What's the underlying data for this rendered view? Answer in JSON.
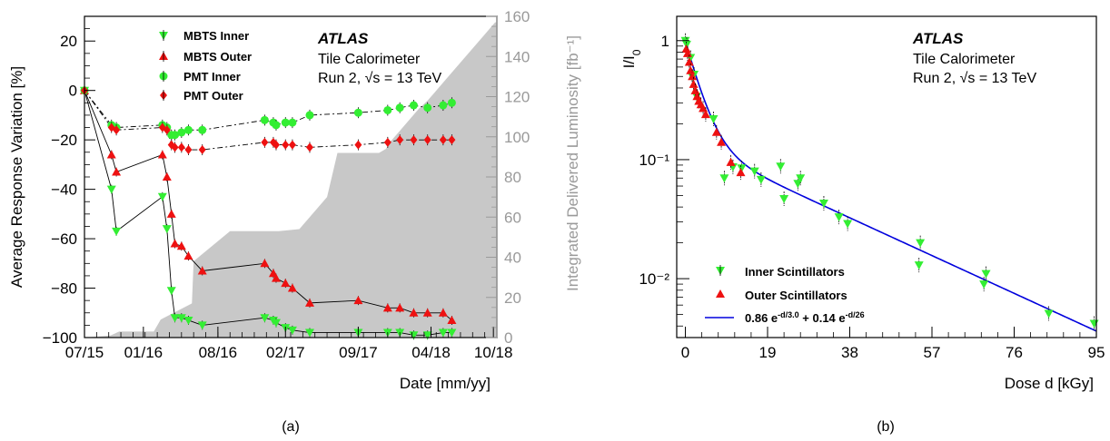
{
  "chart_data": [
    {
      "type": "line",
      "panel_caption": "(a)",
      "experiment": "ATLAS",
      "detector": "Tile Calorimeter",
      "run_label": "Run 2, √s = 13 TeV",
      "xlabel": "Date [mm/yy]",
      "ylabel": "Average Response Variation [%]",
      "ylabel_right": "Integrated Delivered Luminosity [fb⁻¹]",
      "ylim": [
        -100,
        30
      ],
      "ylim_right": [
        0,
        160
      ],
      "x_tick_labels": [
        "07/15",
        "01/16",
        "08/16",
        "02/17",
        "09/17",
        "04/18",
        "10/18"
      ],
      "y_tick_labels": [
        "20",
        "0",
        "−20",
        "−40",
        "−60",
        "−80",
        "−100"
      ],
      "y_right_tick_labels": [
        "0",
        "20",
        "40",
        "60",
        "80",
        "100",
        "120",
        "140",
        "160"
      ],
      "legend": [
        "MBTS Inner",
        "MBTS Outer",
        "PMT Inner",
        "PMT Outer"
      ],
      "legend_position": "top-left",
      "colors": {
        "green": "#33ee33",
        "red": "#ee1111",
        "luminosity": "#c8c8c8"
      },
      "x_unit": "days since 2015-07-15",
      "luminosity": {
        "x": [
          0,
          75,
          100,
          200,
          220,
          310,
          315,
          420,
          430,
          520,
          560,
          620,
          700,
          730,
          800,
          840,
          850,
          870,
          885,
          905,
          925,
          945,
          965,
          990,
          1010,
          1040,
          1070,
          1100,
          1130,
          1160,
          1185
        ],
        "y": [
          0,
          1,
          3,
          3,
          9,
          17,
          38,
          53,
          53,
          53,
          53,
          54,
          70,
          92,
          92,
          92,
          92,
          94,
          98,
          102,
          106,
          110,
          114,
          118,
          122,
          128,
          134,
          140,
          146,
          152,
          157
        ]
      },
      "series": [
        {
          "name": "MBTS Inner",
          "marker": "triangle-down",
          "color": "#33ee33",
          "x": [
            0,
            78,
            92,
            225,
            238,
            251,
            261,
            280,
            300,
            340,
            520,
            545,
            553,
            580,
            600,
            650,
            790,
            875,
            910,
            950,
            990,
            1035,
            1060
          ],
          "y": [
            0,
            -40,
            -57,
            -43,
            -56,
            -81,
            -92,
            -92,
            -93,
            -95,
            -92,
            -93,
            -94,
            -96,
            -97,
            -98,
            -98,
            -98,
            -98,
            -99,
            -99,
            -98,
            -98
          ]
        },
        {
          "name": "MBTS Outer",
          "marker": "triangle-up",
          "color": "#ee1111",
          "x": [
            0,
            78,
            92,
            225,
            238,
            251,
            261,
            280,
            300,
            340,
            520,
            545,
            553,
            580,
            600,
            650,
            790,
            875,
            910,
            950,
            990,
            1035,
            1060
          ],
          "y": [
            0,
            -26,
            -33,
            -26,
            -35,
            -50,
            -62,
            -63,
            -67,
            -73,
            -70,
            -74,
            -76,
            -78,
            -80,
            -86,
            -85,
            -88,
            -88,
            -90,
            -90,
            -90,
            -93
          ]
        },
        {
          "name": "PMT Inner",
          "marker": "circle",
          "color": "#33ee33",
          "x": [
            0,
            78,
            92,
            225,
            238,
            251,
            261,
            280,
            300,
            340,
            520,
            545,
            553,
            580,
            600,
            650,
            790,
            875,
            910,
            950,
            990,
            1035,
            1060
          ],
          "y": [
            0,
            -14,
            -15,
            -14,
            -15,
            -18,
            -18,
            -17,
            -16,
            -16,
            -12,
            -13,
            -14,
            -13,
            -13,
            -10,
            -9,
            -8,
            -7,
            -6,
            -7,
            -6,
            -5
          ]
        },
        {
          "name": "PMT Outer",
          "marker": "diamond",
          "color": "#ee1111",
          "x": [
            0,
            78,
            92,
            225,
            238,
            251,
            261,
            280,
            300,
            340,
            520,
            545,
            553,
            580,
            600,
            650,
            790,
            875,
            910,
            950,
            990,
            1035,
            1060
          ],
          "y": [
            0,
            -15,
            -16,
            -15,
            -16,
            -22,
            -23,
            -23,
            -24,
            -24,
            -21,
            -21,
            -22,
            -22,
            -22,
            -23,
            -22,
            -21,
            -20,
            -20,
            -20,
            -20,
            -20
          ]
        }
      ]
    },
    {
      "type": "scatter",
      "panel_caption": "(b)",
      "experiment": "ATLAS",
      "detector": "Tile Calorimeter",
      "run_label": "Run 2, √s = 13 TeV",
      "xlabel": "Dose d [kGy]",
      "ylabel": "I/I₀",
      "xlim": [
        -2,
        95
      ],
      "ylim": [
        0.0032,
        1.6
      ],
      "yscale": "log",
      "x_tick_labels": [
        "0",
        "19",
        "38",
        "57",
        "76",
        "95"
      ],
      "y_tick_labels": [
        "1",
        "10⁻¹",
        "10⁻²"
      ],
      "legend": [
        "Inner Scintillators",
        "Outer Scintillators",
        "0.86 e⁻ᵈᐟ³⋅⁰ + 0.14 e⁻ᵈᐟ²⁶"
      ],
      "legend_position": "bottom-left",
      "fit": {
        "label": "0.86 e^{-d/3.0} + 0.14 e^{-d/26}",
        "a": 0.86,
        "tau1": 3.0,
        "b": 0.14,
        "tau2": 26,
        "color": "#0000dd"
      },
      "series": [
        {
          "name": "Inner Scintillators",
          "marker": "triangle-down",
          "color": "#33ee33",
          "x": [
            0,
            0.3,
            1.2,
            1.6,
            2.0,
            2.6,
            6.5,
            9,
            11,
            13,
            16,
            17.5,
            22,
            22.8,
            26,
            26.6,
            32,
            35.5,
            37.5,
            54,
            54.3,
            69,
            69.5,
            84,
            94.5
          ],
          "y": [
            1.0,
            0.93,
            0.72,
            0.5,
            0.52,
            0.34,
            0.22,
            0.07,
            0.087,
            0.085,
            0.08,
            0.068,
            0.088,
            0.047,
            0.063,
            0.07,
            0.043,
            0.033,
            0.029,
            0.013,
            0.02,
            0.009,
            0.011,
            0.0051,
            0.0042
          ]
        },
        {
          "name": "Outer Scintillators",
          "marker": "triangle-up",
          "color": "#ee1111",
          "x": [
            0.2,
            0.5,
            0.9,
            1.2,
            1.6,
            1.9,
            2.3,
            2.7,
            3.1,
            3.6,
            4.1,
            4.7,
            7.2,
            8.3,
            10.5,
            12.8
          ],
          "y": [
            0.85,
            0.78,
            0.66,
            0.56,
            0.5,
            0.43,
            0.38,
            0.34,
            0.31,
            0.29,
            0.27,
            0.24,
            0.17,
            0.14,
            0.095,
            0.078
          ]
        }
      ]
    }
  ]
}
